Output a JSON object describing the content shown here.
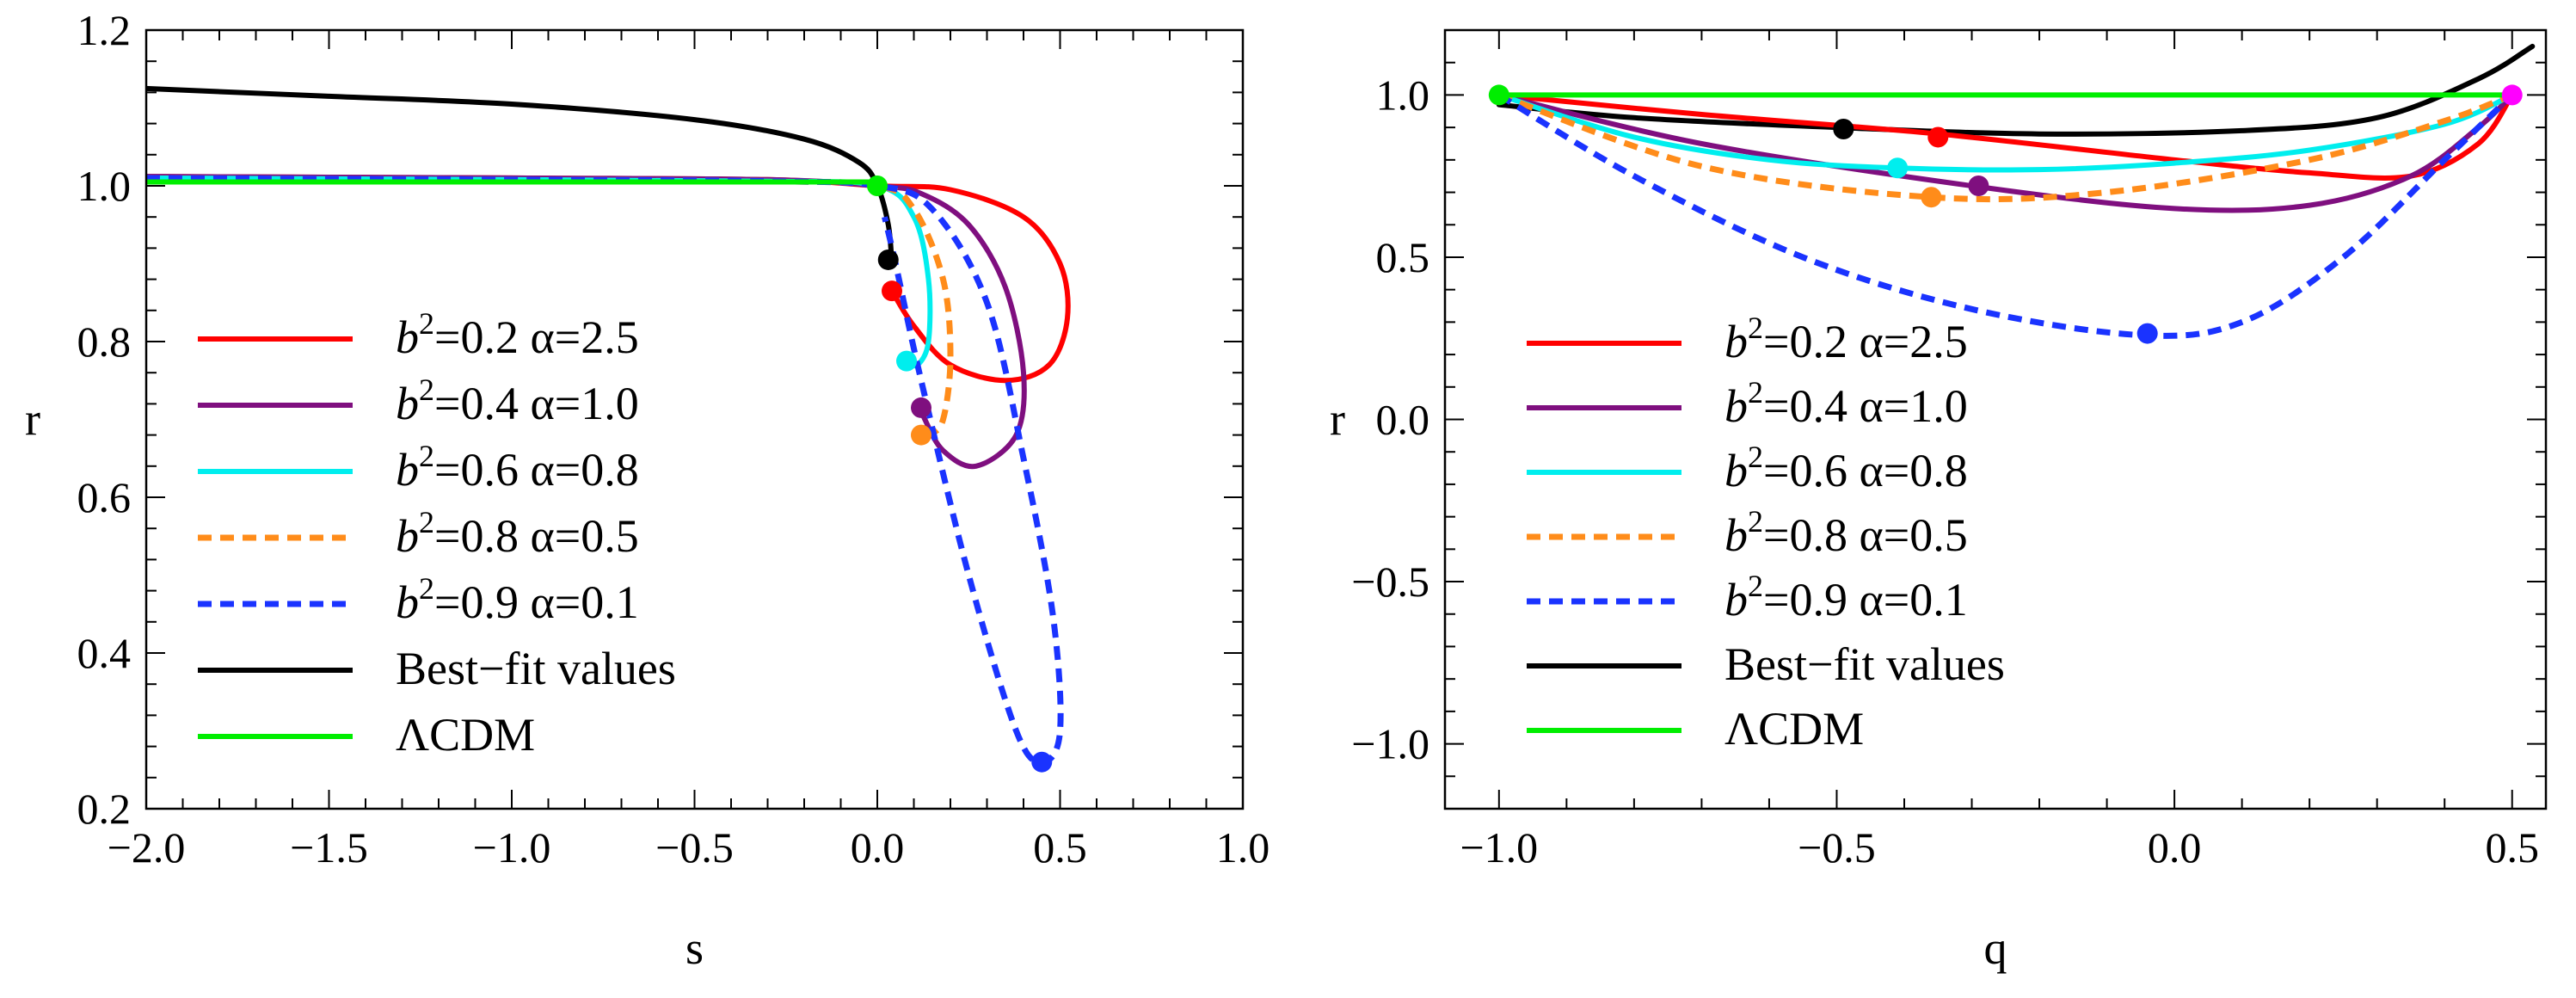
{
  "chart_data": [
    {
      "type": "line",
      "xlabel": "s",
      "ylabel": "r",
      "xlim": [
        -2.0,
        1.0
      ],
      "ylim": [
        0.2,
        1.2
      ],
      "xticks": [
        -2.0,
        -1.5,
        -1.0,
        -0.5,
        0.0,
        0.5,
        1.0
      ],
      "yticks": [
        0.2,
        0.4,
        0.6,
        0.8,
        1.0,
        1.2
      ],
      "xtick_labels": [
        "−2.0",
        "−1.5",
        "−1.0",
        "−0.5",
        "0.0",
        "0.5",
        "1.0"
      ],
      "ytick_labels": [
        "0.2",
        "0.4",
        "0.6",
        "0.8",
        "1.0",
        "1.2"
      ],
      "legend": [
        {
          "b2": "b",
          "sup": "2",
          "label": "=0.2  α=2.5"
        },
        {
          "b2": "b",
          "sup": "2",
          "label": "=0.4  α=1.0"
        },
        {
          "b2": "b",
          "sup": "2",
          "label": "=0.6  α=0.8"
        },
        {
          "b2": "b",
          "sup": "2",
          "label": "=0.8  α=0.5"
        },
        {
          "b2": "b",
          "sup": "2",
          "label": "=0.9  α=0.1"
        },
        {
          "b2": "",
          "sup": "",
          "label": "Best−fit values"
        },
        {
          "b2": "",
          "sup": "",
          "label": "ΛCDM"
        }
      ],
      "series": [
        {
          "name": "b2=0.2 alpha=2.5",
          "color": "#ff0000",
          "dash": false,
          "points": [
            [
              -2.0,
              1.012
            ],
            [
              -1.0,
              1.01
            ],
            [
              -0.3,
              1.008
            ],
            [
              0.0,
              1.0
            ],
            [
              0.2,
              0.995
            ],
            [
              0.4,
              0.96
            ],
            [
              0.5,
              0.9
            ],
            [
              0.52,
              0.83
            ],
            [
              0.47,
              0.77
            ],
            [
              0.35,
              0.75
            ],
            [
              0.2,
              0.77
            ],
            [
              0.1,
              0.82
            ],
            [
              0.04,
              0.865
            ]
          ],
          "marker": [
            0.04,
            0.865
          ]
        },
        {
          "name": "b2=0.4 alpha=1.0",
          "color": "#7f0f7f",
          "dash": false,
          "points": [
            [
              -2.0,
              1.012
            ],
            [
              -1.0,
              1.01
            ],
            [
              -0.3,
              1.008
            ],
            [
              0.0,
              1.0
            ],
            [
              0.12,
              0.99
            ],
            [
              0.25,
              0.95
            ],
            [
              0.35,
              0.87
            ],
            [
              0.4,
              0.76
            ],
            [
              0.38,
              0.68
            ],
            [
              0.27,
              0.64
            ],
            [
              0.18,
              0.66
            ],
            [
              0.13,
              0.7
            ],
            [
              0.12,
              0.715
            ]
          ],
          "marker": [
            0.12,
            0.715
          ]
        },
        {
          "name": "b2=0.6 alpha=0.8",
          "color": "#00eeee",
          "dash": false,
          "points": [
            [
              -2.0,
              1.01
            ],
            [
              -1.0,
              1.008
            ],
            [
              -0.3,
              1.006
            ],
            [
              0.0,
              1.0
            ],
            [
              0.1,
              0.96
            ],
            [
              0.14,
              0.88
            ],
            [
              0.14,
              0.8
            ],
            [
              0.11,
              0.77
            ],
            [
              0.08,
              0.775
            ]
          ],
          "marker": [
            0.08,
            0.775
          ]
        },
        {
          "name": "b2=0.8 alpha=0.5",
          "color": "#ff8c1a",
          "dash": true,
          "points": [
            [
              -2.0,
              1.01
            ],
            [
              -1.0,
              1.008
            ],
            [
              -0.3,
              1.006
            ],
            [
              0.0,
              1.0
            ],
            [
              0.1,
              0.97
            ],
            [
              0.18,
              0.88
            ],
            [
              0.2,
              0.78
            ],
            [
              0.18,
              0.7
            ],
            [
              0.14,
              0.68
            ],
            [
              0.12,
              0.68
            ]
          ],
          "marker": [
            0.12,
            0.68
          ]
        },
        {
          "name": "b2=0.9 alpha=0.1",
          "color": "#1a33ff",
          "dash": true,
          "points": [
            [
              -2.0,
              1.01
            ],
            [
              -1.0,
              1.008
            ],
            [
              -0.3,
              1.006
            ],
            [
              0.0,
              1.0
            ],
            [
              0.15,
              0.97
            ],
            [
              0.3,
              0.85
            ],
            [
              0.4,
              0.65
            ],
            [
              0.48,
              0.45
            ],
            [
              0.5,
              0.3
            ],
            [
              0.45,
              0.26
            ],
            [
              0.38,
              0.3
            ],
            [
              0.25,
              0.5
            ],
            [
              0.12,
              0.75
            ],
            [
              0.05,
              0.9
            ],
            [
              0.02,
              0.96
            ]
          ],
          "marker": [
            0.45,
            0.26
          ]
        },
        {
          "name": "Best-fit values",
          "color": "#000000",
          "dash": false,
          "points": [
            [
              -2.0,
              1.125
            ],
            [
              -1.5,
              1.115
            ],
            [
              -1.0,
              1.105
            ],
            [
              -0.5,
              1.085
            ],
            [
              -0.2,
              1.06
            ],
            [
              -0.05,
              1.03
            ],
            [
              0.0,
              1.0
            ],
            [
              0.03,
              0.95
            ],
            [
              0.04,
              0.9
            ]
          ],
          "marker": [
            0.03,
            0.905
          ]
        },
        {
          "name": "LCDM",
          "color": "#00ee00",
          "dash": false,
          "points": [
            [
              -2.0,
              1.005
            ],
            [
              0.0,
              1.005
            ]
          ],
          "marker": [
            0.0,
            1.0
          ]
        }
      ]
    },
    {
      "type": "line",
      "xlabel": "q",
      "ylabel": "r",
      "xlim": [
        -1.08,
        0.55
      ],
      "ylim": [
        -1.2,
        1.2
      ],
      "xticks": [
        -1.0,
        -0.5,
        0.0,
        0.5
      ],
      "yticks": [
        -1.0,
        -0.5,
        0.0,
        0.5,
        1.0
      ],
      "xtick_labels": [
        "−1.0",
        "−0.5",
        "0.0",
        "0.5"
      ],
      "ytick_labels": [
        "−1.0",
        "−0.5",
        "0.0",
        "0.5",
        "1.0"
      ],
      "legend": [
        {
          "b2": "b",
          "sup": "2",
          "label": "=0.2  α=2.5"
        },
        {
          "b2": "b",
          "sup": "2",
          "label": "=0.4  α=1.0"
        },
        {
          "b2": "b",
          "sup": "2",
          "label": "=0.6  α=0.8"
        },
        {
          "b2": "b",
          "sup": "2",
          "label": "=0.8  α=0.5"
        },
        {
          "b2": "b",
          "sup": "2",
          "label": "=0.9  α=0.1"
        },
        {
          "b2": "",
          "sup": "",
          "label": "Best−fit values"
        },
        {
          "b2": "",
          "sup": "",
          "label": "ΛCDM"
        }
      ],
      "series": [
        {
          "name": "b2=0.2 alpha=2.5",
          "color": "#ff0000",
          "dash": false,
          "points": [
            [
              -1.0,
              1.0
            ],
            [
              -0.7,
              0.94
            ],
            [
              -0.35,
              0.88
            ],
            [
              0.0,
              0.8
            ],
            [
              0.2,
              0.76
            ],
            [
              0.35,
              0.75
            ],
            [
              0.45,
              0.85
            ],
            [
              0.5,
              1.0
            ]
          ],
          "marker": [
            -0.35,
            0.87
          ]
        },
        {
          "name": "b2=0.4 alpha=1.0",
          "color": "#7f0f7f",
          "dash": false,
          "points": [
            [
              -1.0,
              1.0
            ],
            [
              -0.7,
              0.85
            ],
            [
              -0.3,
              0.72
            ],
            [
              0.0,
              0.65
            ],
            [
              0.2,
              0.66
            ],
            [
              0.35,
              0.75
            ],
            [
              0.45,
              0.9
            ],
            [
              0.5,
              1.0
            ]
          ],
          "marker": [
            -0.29,
            0.72
          ]
        },
        {
          "name": "b2=0.6 alpha=0.8",
          "color": "#00eeee",
          "dash": false,
          "points": [
            [
              -1.0,
              1.0
            ],
            [
              -0.8,
              0.87
            ],
            [
              -0.6,
              0.8
            ],
            [
              -0.41,
              0.775
            ],
            [
              -0.2,
              0.77
            ],
            [
              0.0,
              0.79
            ],
            [
              0.2,
              0.83
            ],
            [
              0.4,
              0.91
            ],
            [
              0.5,
              1.0
            ]
          ],
          "marker": [
            -0.41,
            0.775
          ]
        },
        {
          "name": "b2=0.8 alpha=0.5",
          "color": "#ff8c1a",
          "dash": true,
          "points": [
            [
              -1.0,
              1.0
            ],
            [
              -0.7,
              0.78
            ],
            [
              -0.36,
              0.685
            ],
            [
              -0.1,
              0.7
            ],
            [
              0.2,
              0.8
            ],
            [
              0.4,
              0.92
            ],
            [
              0.5,
              1.0
            ]
          ],
          "marker": [
            -0.36,
            0.685
          ]
        },
        {
          "name": "b2=0.9 alpha=0.1",
          "color": "#1a33ff",
          "dash": true,
          "points": [
            [
              -1.0,
              1.0
            ],
            [
              -0.8,
              0.75
            ],
            [
              -0.55,
              0.5
            ],
            [
              -0.3,
              0.34
            ],
            [
              -0.05,
              0.26
            ],
            [
              0.1,
              0.3
            ],
            [
              0.25,
              0.5
            ],
            [
              0.4,
              0.8
            ],
            [
              0.5,
              1.0
            ]
          ],
          "marker": [
            -0.04,
            0.265
          ]
        },
        {
          "name": "Best-fit values",
          "color": "#000000",
          "dash": false,
          "points": [
            [
              -1.0,
              0.97
            ],
            [
              -0.8,
              0.93
            ],
            [
              -0.5,
              0.9
            ],
            [
              -0.2,
              0.88
            ],
            [
              0.1,
              0.89
            ],
            [
              0.3,
              0.93
            ],
            [
              0.45,
              1.05
            ],
            [
              0.53,
              1.15
            ]
          ],
          "marker": [
            -0.49,
            0.895
          ]
        },
        {
          "name": "LCDM",
          "color": "#00ee00",
          "dash": false,
          "points": [
            [
              -1.0,
              1.0
            ],
            [
              0.5,
              1.0
            ]
          ],
          "marker": [
            -1.0,
            1.0
          ],
          "marker2": [
            0.5,
            1.0
          ],
          "marker2_color": "#ff00ff"
        }
      ]
    }
  ]
}
